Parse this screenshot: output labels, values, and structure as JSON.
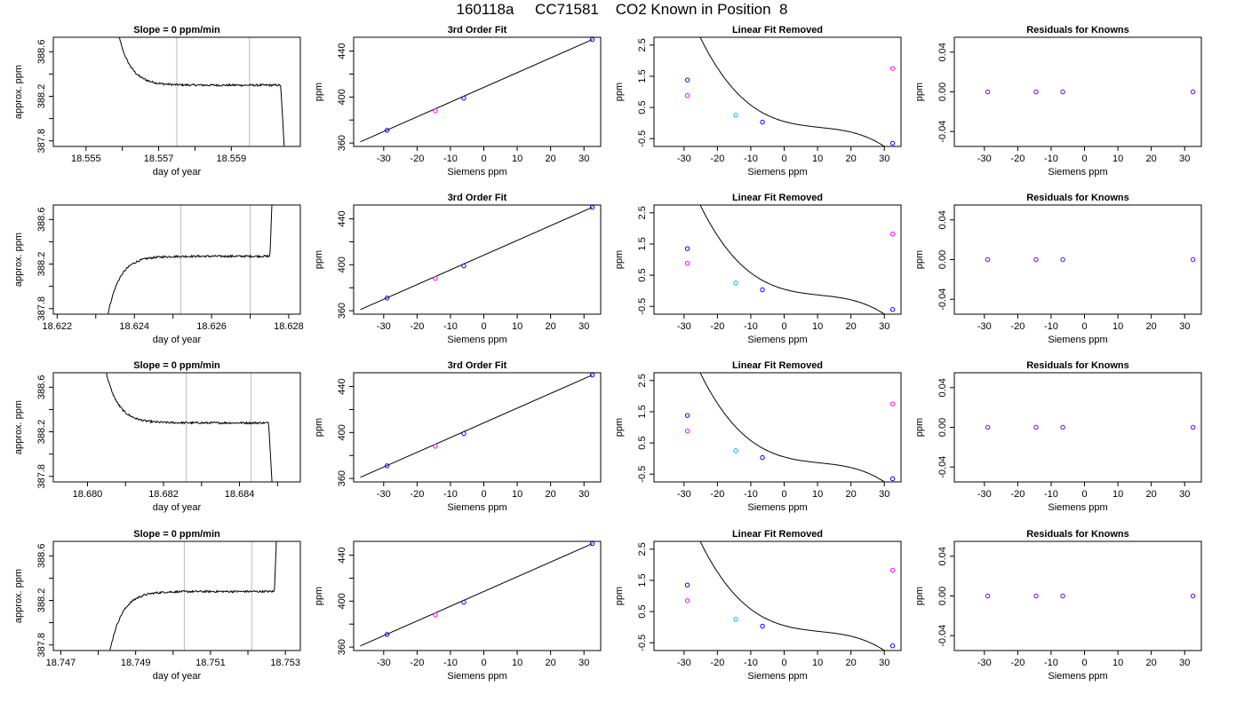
{
  "figure": {
    "title": "160118a     CC71581    CO2 Known in Position  8"
  },
  "chart_data": [
    {
      "id": "r1-trace",
      "type": "line",
      "panel": "trace",
      "row": 1,
      "title": "Slope =  0  ppm/min",
      "xlabel": "day of year",
      "ylabel": "approx. ppm",
      "xlim": [
        18.5541,
        18.5609
      ],
      "ylim": [
        387.75,
        388.73
      ],
      "xticks": [
        18.555,
        18.556,
        18.557,
        18.558,
        18.559
      ],
      "xtick_labels": [
        "18.555",
        "",
        "18.557",
        "",
        "18.559"
      ],
      "yticks": [
        387.8,
        388.0,
        388.2,
        388.4,
        388.6
      ],
      "ytick_labels": [
        "387.8",
        "",
        "388.2",
        "",
        "388.6"
      ],
      "vlines": [
        18.5575,
        18.5595
      ],
      "shape": "fall",
      "edge_start": 18.5558,
      "edge_end": 18.5605,
      "plateau": 388.3,
      "line_color": "#000000",
      "vline_color": "#bbbbbb"
    },
    {
      "id": "r1-fit",
      "type": "scatter",
      "panel": "fit",
      "row": 1,
      "title": "3rd Order Fit",
      "xlabel": "Siemens ppm",
      "ylabel": "ppm",
      "xlim": [
        -39,
        35
      ],
      "ylim": [
        357,
        452
      ],
      "xticks": [
        -30,
        -20,
        -10,
        0,
        10,
        20,
        30
      ],
      "xtick_labels": [
        "-30",
        "-20",
        "-10",
        "0",
        "10",
        "20",
        "30"
      ],
      "yticks": [
        360,
        380,
        400,
        420,
        440
      ],
      "ytick_labels": [
        "360",
        "",
        "400",
        "",
        "440"
      ],
      "points": [
        {
          "x": -29,
          "y": 371,
          "color": "#0000ff"
        },
        {
          "x": -14.5,
          "y": 388,
          "color": "#ff00ff"
        },
        {
          "x": -6,
          "y": 399,
          "color": "#0000ff"
        },
        {
          "x": 32.5,
          "y": 450,
          "color": "#0000ff"
        }
      ],
      "line": {
        "x": [
          -37,
          32.5
        ],
        "y": [
          361,
          450
        ]
      }
    },
    {
      "id": "r1-resid",
      "type": "scatter",
      "panel": "linear-removed",
      "row": 1,
      "title": "Linear Fit Removed",
      "xlabel": "Siemens ppm",
      "ylabel": "ppm",
      "xlim": [
        -39,
        35
      ],
      "ylim": [
        -0.75,
        2.75
      ],
      "xticks": [
        -30,
        -20,
        -10,
        0,
        10,
        20,
        30
      ],
      "xtick_labels": [
        "-30",
        "-20",
        "-10",
        "0",
        "10",
        "20",
        "30"
      ],
      "yticks": [
        -0.5,
        0.5,
        1.5,
        2.5
      ],
      "ytick_labels": [
        "-0.5",
        "0.5",
        "1.5",
        "2.5"
      ],
      "points": [
        {
          "x": -29,
          "y": 1.38,
          "color": "#0000ff"
        },
        {
          "x": -29,
          "y": 0.88,
          "color": "#ff00ff"
        },
        {
          "x": -14.5,
          "y": 0.25,
          "color": "#00aaff"
        },
        {
          "x": -6.5,
          "y": 0.03,
          "color": "#0000ff"
        },
        {
          "x": 32.5,
          "y": 1.75,
          "color": "#ff00ff"
        },
        {
          "x": 32.5,
          "y": -0.65,
          "color": "#0000ff"
        }
      ],
      "curve_color": "#000000"
    },
    {
      "id": "r1-known",
      "type": "scatter",
      "panel": "knowns",
      "row": 1,
      "title": "Residuals for Knowns",
      "xlabel": "Siemens ppm",
      "ylabel": "ppm",
      "xlim": [
        -39,
        35
      ],
      "ylim": [
        -0.055,
        0.055
      ],
      "xticks": [
        -30,
        -20,
        -10,
        0,
        10,
        20,
        30
      ],
      "xtick_labels": [
        "-30",
        "-20",
        "-10",
        "0",
        "10",
        "20",
        "30"
      ],
      "yticks": [
        -0.04,
        0.0,
        0.04
      ],
      "ytick_labels": [
        "-0.04",
        "0.00",
        "0.04"
      ],
      "points": [
        {
          "x": -29,
          "y": 0,
          "color": "#6600ff"
        },
        {
          "x": -14.5,
          "y": 0,
          "color": "#6600ff"
        },
        {
          "x": -6.5,
          "y": 0,
          "color": "#6600ff"
        },
        {
          "x": 32.5,
          "y": 0,
          "color": "#6600ff"
        }
      ]
    },
    {
      "id": "r2-trace",
      "type": "line",
      "panel": "trace",
      "row": 2,
      "title": "",
      "xlabel": "day of year",
      "ylabel": "approx. ppm",
      "xlim": [
        18.6219,
        18.6283
      ],
      "ylim": [
        387.75,
        388.73
      ],
      "xticks": [
        18.622,
        18.623,
        18.624,
        18.625,
        18.626,
        18.627,
        18.628
      ],
      "xtick_labels": [
        "18.622",
        "",
        "18.624",
        "",
        "18.626",
        "",
        "18.628"
      ],
      "yticks": [
        387.8,
        388.0,
        388.2,
        388.4,
        388.6
      ],
      "ytick_labels": [
        "387.8",
        "",
        "388.2",
        "",
        "388.6"
      ],
      "vlines": [
        18.6252,
        18.627
      ],
      "shape": "rise",
      "edge_start": 18.6232,
      "edge_end": 18.6276,
      "plateau": 388.27,
      "line_color": "#000000",
      "vline_color": "#bbbbbb"
    },
    {
      "id": "r2-fit",
      "type": "scatter",
      "panel": "fit",
      "row": 2,
      "title": "3rd Order Fit",
      "xlabel": "Siemens ppm",
      "ylabel": "ppm",
      "xlim": [
        -39,
        35
      ],
      "ylim": [
        357,
        452
      ],
      "xticks": [
        -30,
        -20,
        -10,
        0,
        10,
        20,
        30
      ],
      "xtick_labels": [
        "-30",
        "-20",
        "-10",
        "0",
        "10",
        "20",
        "30"
      ],
      "yticks": [
        360,
        380,
        400,
        420,
        440
      ],
      "ytick_labels": [
        "360",
        "",
        "400",
        "",
        "440"
      ],
      "points": [
        {
          "x": -29,
          "y": 371,
          "color": "#0000ff"
        },
        {
          "x": -14.5,
          "y": 388,
          "color": "#ff00ff"
        },
        {
          "x": -6,
          "y": 399,
          "color": "#0000ff"
        },
        {
          "x": 32.5,
          "y": 450,
          "color": "#0000ff"
        }
      ],
      "line": {
        "x": [
          -37,
          32.5
        ],
        "y": [
          361,
          450
        ]
      }
    },
    {
      "id": "r2-resid",
      "type": "scatter",
      "panel": "linear-removed",
      "row": 2,
      "title": "Linear Fit Removed",
      "xlabel": "Siemens ppm",
      "ylabel": "ppm",
      "xlim": [
        -39,
        35
      ],
      "ylim": [
        -0.75,
        2.75
      ],
      "xticks": [
        -30,
        -20,
        -10,
        0,
        10,
        20,
        30
      ],
      "xtick_labels": [
        "-30",
        "-20",
        "-10",
        "0",
        "10",
        "20",
        "30"
      ],
      "yticks": [
        -0.5,
        0.5,
        1.5,
        2.5
      ],
      "ytick_labels": [
        "-0.5",
        "0.5",
        "1.5",
        "2.5"
      ],
      "points": [
        {
          "x": -29,
          "y": 1.35,
          "color": "#0000ff"
        },
        {
          "x": -29,
          "y": 0.88,
          "color": "#ff00ff"
        },
        {
          "x": -14.5,
          "y": 0.25,
          "color": "#00aaff"
        },
        {
          "x": -6.5,
          "y": 0.03,
          "color": "#0000ff"
        },
        {
          "x": 32.5,
          "y": 1.82,
          "color": "#ff00ff"
        },
        {
          "x": 32.5,
          "y": -0.6,
          "color": "#0000ff"
        }
      ],
      "curve_color": "#000000"
    },
    {
      "id": "r2-known",
      "type": "scatter",
      "panel": "knowns",
      "row": 2,
      "title": "Residuals for Knowns",
      "xlabel": "Siemens ppm",
      "ylabel": "ppm",
      "xlim": [
        -39,
        35
      ],
      "ylim": [
        -0.055,
        0.055
      ],
      "xticks": [
        -30,
        -20,
        -10,
        0,
        10,
        20,
        30
      ],
      "xtick_labels": [
        "-30",
        "-20",
        "-10",
        "0",
        "10",
        "20",
        "30"
      ],
      "yticks": [
        -0.04,
        0.0,
        0.04
      ],
      "ytick_labels": [
        "-0.04",
        "0.00",
        "0.04"
      ],
      "points": [
        {
          "x": -29,
          "y": 0,
          "color": "#6600ff"
        },
        {
          "x": -14.5,
          "y": 0,
          "color": "#6600ff"
        },
        {
          "x": -6.5,
          "y": 0,
          "color": "#6600ff"
        },
        {
          "x": 32.5,
          "y": 0,
          "color": "#6600ff"
        }
      ]
    },
    {
      "id": "r3-trace",
      "type": "line",
      "panel": "trace",
      "row": 3,
      "title": "Slope =  0  ppm/min",
      "xlabel": "day of year",
      "ylabel": "approx. ppm",
      "xlim": [
        18.6791,
        18.6856
      ],
      "ylim": [
        387.75,
        388.73
      ],
      "xticks": [
        18.68,
        18.681,
        18.682,
        18.683,
        18.684,
        18.685
      ],
      "xtick_labels": [
        "18.680",
        "",
        "18.682",
        "",
        "18.684",
        ""
      ],
      "yticks": [
        387.8,
        388.0,
        388.2,
        388.4,
        388.6
      ],
      "ytick_labels": [
        "387.8",
        "",
        "388.2",
        "",
        "388.6"
      ],
      "vlines": [
        18.6826,
        18.6843
      ],
      "shape": "fall",
      "edge_start": 18.6804,
      "edge_end": 18.6849,
      "plateau": 388.28,
      "line_color": "#000000",
      "vline_color": "#bbbbbb"
    },
    {
      "id": "r3-fit",
      "type": "scatter",
      "panel": "fit",
      "row": 3,
      "title": "3rd Order Fit",
      "xlabel": "Siemens ppm",
      "ylabel": "ppm",
      "xlim": [
        -39,
        35
      ],
      "ylim": [
        357,
        452
      ],
      "xticks": [
        -30,
        -20,
        -10,
        0,
        10,
        20,
        30
      ],
      "xtick_labels": [
        "-30",
        "-20",
        "-10",
        "0",
        "10",
        "20",
        "30"
      ],
      "yticks": [
        360,
        380,
        400,
        420,
        440
      ],
      "ytick_labels": [
        "360",
        "",
        "400",
        "",
        "440"
      ],
      "points": [
        {
          "x": -29,
          "y": 371,
          "color": "#0000ff"
        },
        {
          "x": -14.5,
          "y": 388,
          "color": "#ff00ff"
        },
        {
          "x": -6,
          "y": 399,
          "color": "#0000ff"
        },
        {
          "x": 32.5,
          "y": 450,
          "color": "#0000ff"
        }
      ],
      "line": {
        "x": [
          -37,
          32.5
        ],
        "y": [
          361,
          450
        ]
      }
    },
    {
      "id": "r3-resid",
      "type": "scatter",
      "panel": "linear-removed",
      "row": 3,
      "title": "Linear Fit Removed",
      "xlabel": "Siemens ppm",
      "ylabel": "ppm",
      "xlim": [
        -39,
        35
      ],
      "ylim": [
        -0.75,
        2.75
      ],
      "xticks": [
        -30,
        -20,
        -10,
        0,
        10,
        20,
        30
      ],
      "xtick_labels": [
        "-30",
        "-20",
        "-10",
        "0",
        "10",
        "20",
        "30"
      ],
      "yticks": [
        -0.5,
        0.5,
        1.5,
        2.5
      ],
      "ytick_labels": [
        "-0.5",
        "0.5",
        "1.5",
        "2.5"
      ],
      "points": [
        {
          "x": -29,
          "y": 1.38,
          "color": "#0000ff"
        },
        {
          "x": -29,
          "y": 0.88,
          "color": "#ff00ff"
        },
        {
          "x": -14.5,
          "y": 0.25,
          "color": "#00aaff"
        },
        {
          "x": -6.5,
          "y": 0.03,
          "color": "#0000ff"
        },
        {
          "x": 32.5,
          "y": 1.75,
          "color": "#ff00ff"
        },
        {
          "x": 32.5,
          "y": -0.65,
          "color": "#0000ff"
        }
      ],
      "curve_color": "#000000"
    },
    {
      "id": "r3-known",
      "type": "scatter",
      "panel": "knowns",
      "row": 3,
      "title": "Residuals for Knowns",
      "xlabel": "Siemens ppm",
      "ylabel": "ppm",
      "xlim": [
        -39,
        35
      ],
      "ylim": [
        -0.055,
        0.055
      ],
      "xticks": [
        -30,
        -20,
        -10,
        0,
        10,
        20,
        30
      ],
      "xtick_labels": [
        "-30",
        "-20",
        "-10",
        "0",
        "10",
        "20",
        "30"
      ],
      "yticks": [
        -0.04,
        0.0,
        0.04
      ],
      "ytick_labels": [
        "-0.04",
        "0.00",
        "0.04"
      ],
      "points": [
        {
          "x": -29,
          "y": 0,
          "color": "#6600ff"
        },
        {
          "x": -14.5,
          "y": 0,
          "color": "#6600ff"
        },
        {
          "x": -6.5,
          "y": 0,
          "color": "#6600ff"
        },
        {
          "x": 32.5,
          "y": 0,
          "color": "#6600ff"
        }
      ]
    },
    {
      "id": "r4-trace",
      "type": "line",
      "panel": "trace",
      "row": 4,
      "title": "Slope =  0  ppm/min",
      "xlabel": "day of year",
      "ylabel": "approx. ppm",
      "xlim": [
        18.7468,
        18.7534
      ],
      "ylim": [
        387.75,
        388.73
      ],
      "xticks": [
        18.747,
        18.748,
        18.749,
        18.75,
        18.751,
        18.752,
        18.753
      ],
      "xtick_labels": [
        "18.747",
        "",
        "18.749",
        "",
        "18.751",
        "",
        "18.753"
      ],
      "yticks": [
        387.8,
        388.0,
        388.2,
        388.4,
        388.6
      ],
      "ytick_labels": [
        "387.8",
        "",
        "388.2",
        "",
        "388.6"
      ],
      "vlines": [
        18.7503,
        18.7521
      ],
      "shape": "rise",
      "edge_start": 18.7482,
      "edge_end": 18.7528,
      "plateau": 388.28,
      "line_color": "#000000",
      "vline_color": "#bbbbbb"
    },
    {
      "id": "r4-fit",
      "type": "scatter",
      "panel": "fit",
      "row": 4,
      "title": "",
      "xlabel": "Siemens ppm",
      "ylabel": "ppm",
      "xlim": [
        -39,
        35
      ],
      "ylim": [
        357,
        452
      ],
      "xticks": [
        -30,
        -20,
        -10,
        0,
        10,
        20,
        30
      ],
      "xtick_labels": [
        "-30",
        "-20",
        "-10",
        "0",
        "10",
        "20",
        "30"
      ],
      "yticks": [
        360,
        380,
        400,
        420,
        440
      ],
      "ytick_labels": [
        "360",
        "",
        "400",
        "",
        "440"
      ],
      "points": [
        {
          "x": -29,
          "y": 371,
          "color": "#0000ff"
        },
        {
          "x": -14.5,
          "y": 388,
          "color": "#ff00ff"
        },
        {
          "x": -6,
          "y": 399,
          "color": "#0000ff"
        },
        {
          "x": 32.5,
          "y": 450,
          "color": "#0000ff"
        }
      ],
      "line": {
        "x": [
          -37,
          32.5
        ],
        "y": [
          361,
          450
        ]
      }
    },
    {
      "id": "r4-resid",
      "type": "scatter",
      "panel": "linear-removed",
      "row": 4,
      "title": "Linear Fit Removed",
      "xlabel": "Siemens ppm",
      "ylabel": "ppm",
      "xlim": [
        -39,
        35
      ],
      "ylim": [
        -0.75,
        2.75
      ],
      "xticks": [
        -30,
        -20,
        -10,
        0,
        10,
        20,
        30
      ],
      "xtick_labels": [
        "-30",
        "-20",
        "-10",
        "0",
        "10",
        "20",
        "30"
      ],
      "yticks": [
        -0.5,
        0.5,
        1.5,
        2.5
      ],
      "ytick_labels": [
        "-0.5",
        "0.5",
        "1.5",
        "2.5"
      ],
      "points": [
        {
          "x": -29,
          "y": 1.35,
          "color": "#0000ff"
        },
        {
          "x": -29,
          "y": 0.85,
          "color": "#ff00ff"
        },
        {
          "x": -14.5,
          "y": 0.25,
          "color": "#00aaff"
        },
        {
          "x": -6.5,
          "y": 0.03,
          "color": "#0000ff"
        },
        {
          "x": 32.5,
          "y": 1.82,
          "color": "#ff00ff"
        },
        {
          "x": 32.5,
          "y": -0.6,
          "color": "#0000ff"
        }
      ],
      "curve_color": "#000000"
    },
    {
      "id": "r4-known",
      "type": "scatter",
      "panel": "knowns",
      "row": 4,
      "title": "Residuals for Knowns",
      "xlabel": "Siemens ppm",
      "ylabel": "ppm",
      "xlim": [
        -39,
        35
      ],
      "ylim": [
        -0.055,
        0.055
      ],
      "xticks": [
        -30,
        -20,
        -10,
        0,
        10,
        20,
        30
      ],
      "xtick_labels": [
        "-30",
        "-20",
        "-10",
        "0",
        "10",
        "20",
        "30"
      ],
      "yticks": [
        -0.04,
        0.0,
        0.04
      ],
      "ytick_labels": [
        "-0.04",
        "0.00",
        "0.04"
      ],
      "points": [
        {
          "x": -29,
          "y": 0,
          "color": "#6600ff"
        },
        {
          "x": -14.5,
          "y": 0,
          "color": "#6600ff"
        },
        {
          "x": -6.5,
          "y": 0,
          "color": "#6600ff"
        },
        {
          "x": 32.5,
          "y": 0,
          "color": "#6600ff"
        }
      ]
    }
  ]
}
